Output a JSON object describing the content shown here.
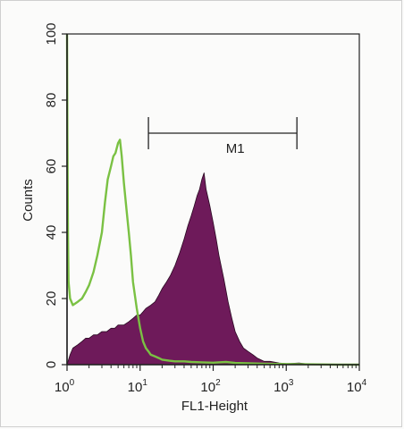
{
  "chart_data": {
    "type": "area",
    "title": "",
    "xlabel": "FL1-Height",
    "ylabel": "Counts",
    "xscale": "log",
    "xlim": [
      1,
      10000
    ],
    "ylim": [
      0,
      100
    ],
    "grid": false,
    "legend": "none",
    "x_ticks": [
      {
        "value": 1,
        "base": "10",
        "exp": "0"
      },
      {
        "value": 10,
        "base": "10",
        "exp": "1"
      },
      {
        "value": 100,
        "base": "10",
        "exp": "2"
      },
      {
        "value": 1000,
        "base": "10",
        "exp": "3"
      },
      {
        "value": 10000,
        "base": "10",
        "exp": "4"
      }
    ],
    "y_ticks": [
      {
        "value": 0,
        "label": "0"
      },
      {
        "value": 20,
        "label": "20"
      },
      {
        "value": 40,
        "label": "40"
      },
      {
        "value": 60,
        "label": "60"
      },
      {
        "value": 80,
        "label": "80"
      },
      {
        "value": 100,
        "label": "100"
      }
    ],
    "marker": {
      "label": "M1",
      "x_start": 13,
      "x_end": 1400,
      "y": 70
    },
    "colors": {
      "stained": "#6e1a5a",
      "control": "#7ac143",
      "axis": "#222222"
    },
    "series": [
      {
        "style": "filled",
        "x": [
          1,
          1.1,
          1.2,
          1.4,
          1.6,
          1.8,
          2,
          2.3,
          2.6,
          3,
          3.5,
          4,
          4.5,
          5,
          6,
          7,
          8,
          9,
          10,
          11,
          12,
          14,
          16,
          18,
          20,
          23,
          26,
          30,
          35,
          40,
          45,
          50,
          55,
          60,
          65,
          70,
          75,
          80,
          90,
          100,
          110,
          120,
          140,
          160,
          180,
          200,
          230,
          260,
          300,
          350,
          400,
          500,
          600,
          800,
          1000,
          1500,
          2000,
          5000,
          10000
        ],
        "values": [
          0,
          3,
          5,
          6,
          7,
          8,
          8,
          9,
          9,
          10,
          10,
          11,
          11,
          12,
          12,
          13,
          14,
          15,
          15,
          16,
          17,
          18,
          19,
          21,
          23,
          25,
          27,
          30,
          34,
          38,
          42,
          45,
          48,
          51,
          53,
          56,
          58,
          53,
          48,
          43,
          38,
          33,
          26,
          19,
          14,
          10,
          7,
          5,
          4,
          3,
          2,
          1,
          1,
          0.5,
          0.3,
          0.5,
          0.2,
          0,
          0
        ]
      },
      {
        "style": "line",
        "x": [
          1,
          1.01,
          1.03,
          1.05,
          1.1,
          1.2,
          1.4,
          1.6,
          1.8,
          2,
          2.3,
          2.6,
          3,
          3.3,
          3.6,
          4,
          4.3,
          4.6,
          5,
          5.3,
          5.6,
          6,
          6.5,
          7,
          7.5,
          8,
          9,
          10,
          11,
          12,
          13,
          14,
          16,
          18,
          20,
          25,
          30,
          40,
          50,
          70,
          100,
          150,
          200,
          300,
          500,
          1000,
          2000,
          5000,
          10000
        ],
        "values": [
          100,
          70,
          40,
          25,
          20,
          18,
          19,
          20,
          22,
          24,
          28,
          33,
          40,
          49,
          56,
          60,
          63,
          64,
          67,
          68,
          63,
          55,
          47,
          40,
          33,
          25,
          17,
          11,
          7,
          5,
          4,
          3,
          2.5,
          2,
          1.5,
          1.2,
          1,
          1,
          0.8,
          0.7,
          0.6,
          0.8,
          0.5,
          0.4,
          0.3,
          0.2,
          0.1,
          0,
          0
        ]
      }
    ]
  }
}
